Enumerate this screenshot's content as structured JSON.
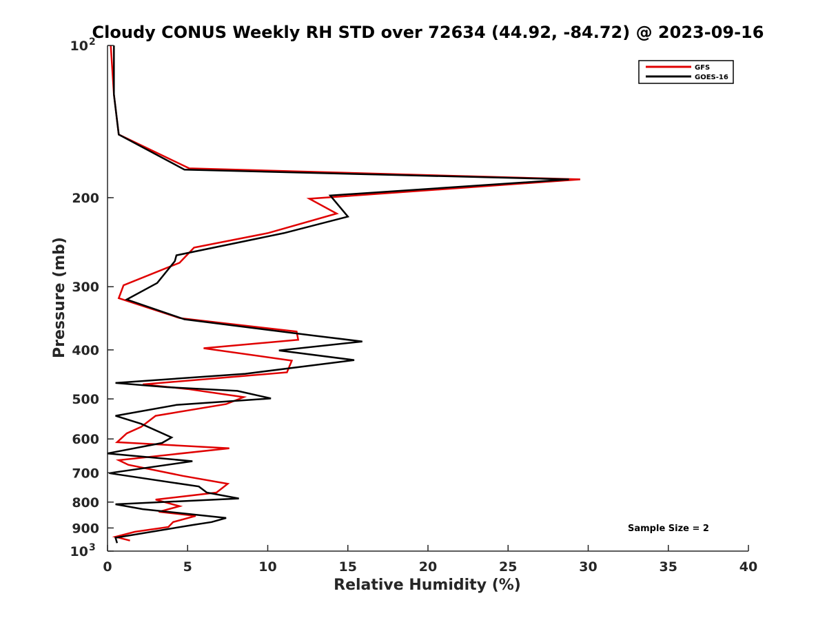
{
  "chart_data": {
    "type": "line",
    "title": "Cloudy CONUS Weekly RH STD over 72634 (44.92, -84.72) @ 2023-09-16",
    "xlabel": "Relative Humidity (%)",
    "ylabel": "Pressure (mb)",
    "xlim": [
      0,
      40
    ],
    "ylim": [
      1000,
      100
    ],
    "y_scale": "log",
    "grid": false,
    "legend_position": "top-right",
    "annotation": "Sample Size = 2",
    "x_ticks": [
      {
        "value": 0,
        "label": "0"
      },
      {
        "value": 5,
        "label": "5"
      },
      {
        "value": 10,
        "label": "10"
      },
      {
        "value": 15,
        "label": "15"
      },
      {
        "value": 20,
        "label": "20"
      },
      {
        "value": 25,
        "label": "25"
      },
      {
        "value": 30,
        "label": "30"
      },
      {
        "value": 35,
        "label": "35"
      },
      {
        "value": 40,
        "label": "40"
      }
    ],
    "y_ticks": [
      {
        "value": 100,
        "label": "10",
        "exp": "2"
      },
      {
        "value": 200,
        "label": "200"
      },
      {
        "value": 300,
        "label": "300"
      },
      {
        "value": 400,
        "label": "400"
      },
      {
        "value": 500,
        "label": "500"
      },
      {
        "value": 600,
        "label": "600"
      },
      {
        "value": 700,
        "label": "700"
      },
      {
        "value": 800,
        "label": "800"
      },
      {
        "value": 900,
        "label": "900"
      },
      {
        "value": 1000,
        "label": "10",
        "exp": "3"
      }
    ],
    "series": [
      {
        "name": "GFS",
        "color": "#e00000",
        "points": [
          [
            0.2,
            100
          ],
          [
            0.4,
            125
          ],
          [
            0.7,
            150
          ],
          [
            5.1,
            175
          ],
          [
            29.5,
            184
          ],
          [
            12.6,
            201
          ],
          [
            14.3,
            215
          ],
          [
            10.0,
            235
          ],
          [
            5.4,
            251
          ],
          [
            4.5,
            269
          ],
          [
            1.0,
            298
          ],
          [
            0.7,
            316
          ],
          [
            4.5,
            346
          ],
          [
            11.8,
            368
          ],
          [
            11.9,
            382
          ],
          [
            6.0,
            397
          ],
          [
            11.5,
            420
          ],
          [
            11.2,
            443
          ],
          [
            2.2,
            468
          ],
          [
            5.0,
            478
          ],
          [
            8.5,
            496
          ],
          [
            7.4,
            512
          ],
          [
            3.0,
            540
          ],
          [
            2.1,
            568
          ],
          [
            1.2,
            585
          ],
          [
            0.6,
            609
          ],
          [
            7.6,
            626
          ],
          [
            0.7,
            661
          ],
          [
            1.3,
            675
          ],
          [
            4.7,
            710
          ],
          [
            7.5,
            736
          ],
          [
            6.8,
            766
          ],
          [
            3.0,
            791
          ],
          [
            4.5,
            815
          ],
          [
            3.2,
            836
          ],
          [
            5.5,
            852
          ],
          [
            4.1,
            876
          ],
          [
            3.8,
            896
          ],
          [
            1.7,
            916
          ],
          [
            0.5,
            937
          ],
          [
            1.4,
            953
          ]
        ]
      },
      {
        "name": "GOES-16",
        "color": "#000000",
        "points": [
          [
            0.4,
            100
          ],
          [
            0.4,
            125
          ],
          [
            0.7,
            150
          ],
          [
            4.8,
            176
          ],
          [
            28.8,
            184
          ],
          [
            13.9,
            198
          ],
          [
            15.0,
            218
          ],
          [
            11.0,
            235
          ],
          [
            4.3,
            260
          ],
          [
            4.2,
            267
          ],
          [
            3.1,
            295
          ],
          [
            1.2,
            318
          ],
          [
            4.8,
            348
          ],
          [
            12.9,
            375
          ],
          [
            15.9,
            385
          ],
          [
            10.7,
            401
          ],
          [
            15.4,
            419
          ],
          [
            8.6,
            446
          ],
          [
            0.5,
            465
          ],
          [
            3.7,
            474
          ],
          [
            8.1,
            482
          ],
          [
            10.2,
            499
          ],
          [
            4.3,
            514
          ],
          [
            0.5,
            540
          ],
          [
            2.1,
            560
          ],
          [
            4.0,
            596
          ],
          [
            3.4,
            611
          ],
          [
            0.0,
            641
          ],
          [
            5.3,
            664
          ],
          [
            0.1,
            701
          ],
          [
            5.7,
            745
          ],
          [
            6.2,
            766
          ],
          [
            8.2,
            787
          ],
          [
            0.5,
            808
          ],
          [
            2.2,
            826
          ],
          [
            7.4,
            860
          ],
          [
            6.5,
            876
          ],
          [
            5.3,
            888
          ],
          [
            0.5,
            941
          ],
          [
            0.6,
            964
          ]
        ]
      }
    ]
  }
}
